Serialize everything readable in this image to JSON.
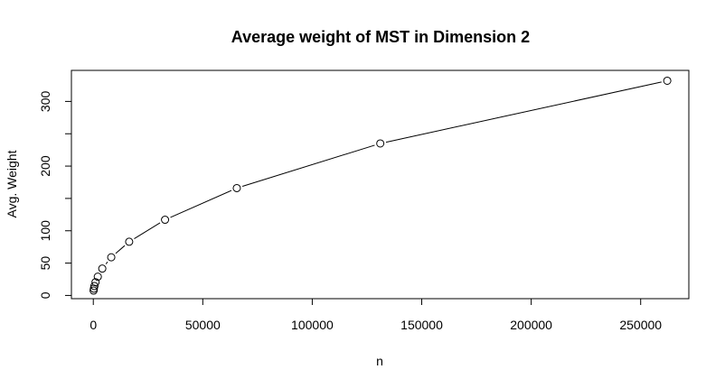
{
  "chart_data": {
    "type": "line",
    "title": "Average weight of MST in Dimension 2",
    "xlabel": "n",
    "ylabel": "Avg. Weight",
    "xlim": [
      -10000,
      272000
    ],
    "ylim": [
      -5,
      348
    ],
    "xticks": [
      0,
      50000,
      100000,
      150000,
      200000,
      250000
    ],
    "xtick_labels": [
      "0",
      "50000",
      "100000",
      "150000",
      "200000",
      "250000"
    ],
    "yticks": [
      0,
      50,
      100,
      150,
      200,
      250,
      300
    ],
    "ytick_labels": [
      "0",
      "50",
      "100",
      "",
      "200",
      "",
      "300"
    ],
    "grid": false,
    "markers": "open-circle",
    "series": [
      {
        "x": [
          128,
          256,
          512,
          1024,
          2048,
          4096,
          8192,
          16384,
          32768,
          65536,
          131072,
          262144
        ],
        "y": [
          7.5,
          10.5,
          14.5,
          20.5,
          29.0,
          41.5,
          59.0,
          83.0,
          117.0,
          166.0,
          235.0,
          332.0
        ]
      }
    ]
  }
}
